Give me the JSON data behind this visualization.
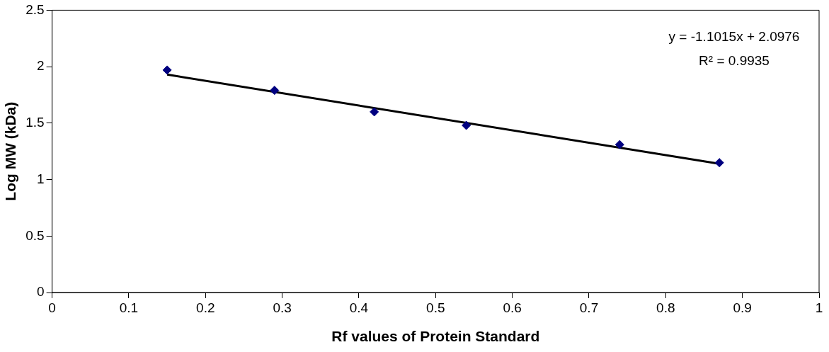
{
  "chart_data": {
    "type": "scatter",
    "xlabel": "Rf values of Protein Standard",
    "ylabel": "Log MW (kDa)",
    "x": [
      0.15,
      0.29,
      0.42,
      0.54,
      0.74,
      0.87
    ],
    "series": [
      {
        "type": "scatter",
        "color": "#000080",
        "marker": "diamond",
        "values": [
          1.97,
          1.79,
          1.6,
          1.48,
          1.31,
          1.15
        ]
      },
      {
        "type": "line",
        "color": "#000000",
        "marker": "none",
        "line_style": "solid",
        "x": [
          0.15,
          0.87
        ],
        "values": [
          1.93,
          1.14
        ]
      }
    ],
    "xlim": [
      0,
      1
    ],
    "xticks": [
      0,
      0.1,
      0.2,
      0.3,
      0.4,
      0.5,
      0.6,
      0.7,
      0.8,
      0.9,
      1
    ],
    "ylim": [
      0,
      2.5
    ],
    "yticks": [
      0,
      0.5,
      1,
      1.5,
      2,
      2.5
    ],
    "grid": false,
    "legend": false,
    "annotations": [
      "y = -1.1015x + 2.0976",
      "R² = 0.9935"
    ]
  }
}
